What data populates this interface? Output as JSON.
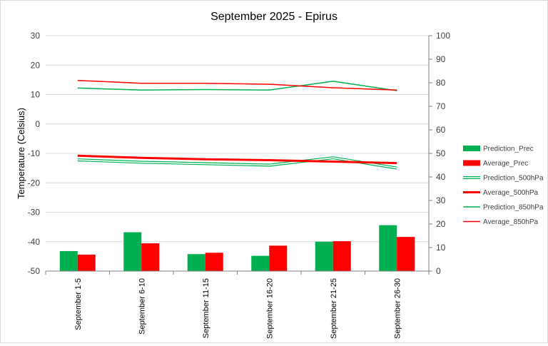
{
  "chart_data": {
    "type": "bar",
    "title": "September 2025 - Epirus",
    "ylabel": "Temperature (Celsius)",
    "y2label": "",
    "ylim": [
      -50,
      30
    ],
    "y2lim": [
      0,
      100
    ],
    "yticks": [
      "30",
      "20",
      "10",
      "0",
      "-10",
      "-20",
      "-30",
      "-40",
      "-50"
    ],
    "y2ticks": [
      "100",
      "90",
      "80",
      "70",
      "60",
      "50",
      "40",
      "30",
      "20",
      "10",
      "0"
    ],
    "categories": [
      "September 1-5",
      "September 6-10",
      "September 11-15",
      "September 16-20",
      "September 21-25",
      "September 26-30"
    ],
    "grid": true,
    "legend_position": "right",
    "series": [
      {
        "name": "Prediction_Prec",
        "type": "bar",
        "axis": "right",
        "color": "#00b050",
        "values": [
          8.5,
          16.5,
          7.2,
          6.5,
          12.5,
          19.5
        ]
      },
      {
        "name": "Average_Prec",
        "type": "bar",
        "axis": "right",
        "color": "#ff0000",
        "values": [
          7.0,
          11.8,
          7.8,
          10.8,
          12.7,
          14.5
        ]
      },
      {
        "name": "Prediction_500hPa",
        "type": "line",
        "style": "double",
        "axis": "left",
        "color": "#00b050",
        "values": [
          -12.2,
          -13.0,
          -13.5,
          -14.0,
          -11.5,
          -15.0
        ]
      },
      {
        "name": "Average_500hPa",
        "type": "line",
        "style": "thick",
        "axis": "left",
        "color": "#ff0000",
        "values": [
          -10.8,
          -11.5,
          -12.0,
          -12.3,
          -12.8,
          -13.3
        ]
      },
      {
        "name": "Prediction_850hPa",
        "type": "line",
        "style": "thin",
        "axis": "left",
        "color": "#00b050",
        "values": [
          12.2,
          11.5,
          11.7,
          11.5,
          14.5,
          11.3
        ]
      },
      {
        "name": "Average_850hPa",
        "type": "line",
        "style": "thin",
        "axis": "left",
        "color": "#ff0000",
        "values": [
          14.8,
          13.8,
          13.8,
          13.5,
          12.3,
          11.5
        ]
      }
    ]
  }
}
